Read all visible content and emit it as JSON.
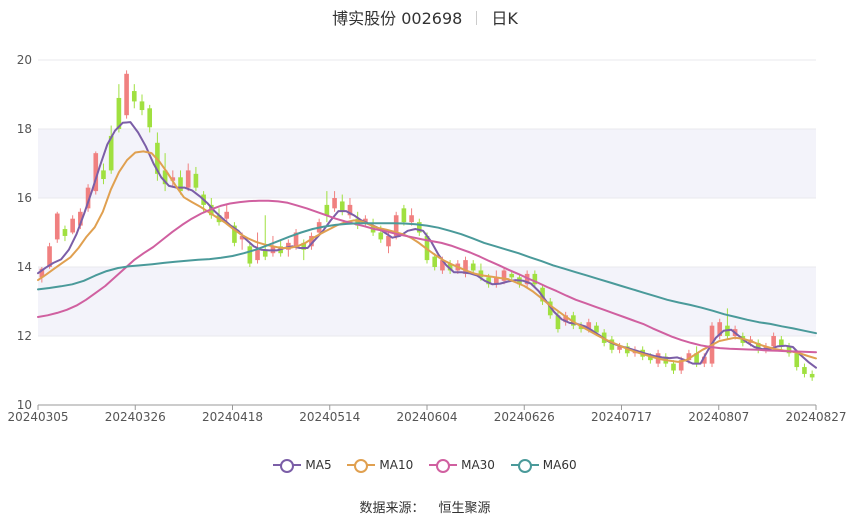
{
  "title": {
    "stock": "博实股份 002698",
    "period": "日K"
  },
  "source": {
    "label": "数据来源：",
    "name": "恒生聚源"
  },
  "colors": {
    "up": "#f08080",
    "down": "#a0e040",
    "ma5": "#7b5ea7",
    "ma10": "#e0a050",
    "ma30": "#d060a0",
    "ma60": "#4a9a9a",
    "band": "#f3f3fa",
    "grid": "#e8e8ee"
  },
  "chart_data": {
    "type": "candlestick",
    "ylim": [
      10,
      20
    ],
    "yticks": [
      10,
      12,
      14,
      16,
      18,
      20
    ],
    "xlabels": [
      "20240305",
      "20240326",
      "20240418",
      "20240514",
      "20240604",
      "20240626",
      "20240717",
      "20240807",
      "20240827"
    ],
    "series": [
      {
        "name": "MA5",
        "color": "#7b5ea7",
        "values": [
          13.82,
          13.98,
          14.12,
          14.22,
          14.5,
          14.95,
          15.55,
          16.2,
          16.9,
          17.55,
          17.95,
          18.18,
          18.2,
          17.9,
          17.5,
          17.0,
          16.6,
          16.35,
          16.3,
          16.3,
          16.22,
          16.05,
          15.85,
          15.6,
          15.4,
          15.2,
          15.05,
          14.8,
          14.6,
          14.5,
          14.48,
          14.48,
          14.55,
          14.6,
          14.55,
          14.55,
          14.8,
          15.05,
          15.35,
          15.62,
          15.62,
          15.5,
          15.35,
          15.25,
          15.15,
          15.0,
          14.85,
          14.9,
          15.05,
          15.1,
          15.05,
          14.75,
          14.35,
          14.05,
          13.85,
          13.85,
          13.82,
          13.75,
          13.6,
          13.5,
          13.52,
          13.58,
          13.62,
          13.6,
          13.52,
          13.3,
          13.0,
          12.7,
          12.48,
          12.38,
          12.35,
          12.28,
          12.15,
          12.0,
          11.85,
          11.75,
          11.68,
          11.62,
          11.55,
          11.48,
          11.42,
          11.38,
          11.36,
          11.38,
          11.3,
          11.2,
          11.2,
          11.6,
          11.95,
          12.15,
          12.18,
          12.0,
          11.82,
          11.68,
          11.62,
          11.62,
          11.7,
          11.72,
          11.68,
          11.45,
          11.25,
          11.08
        ]
      },
      {
        "name": "MA10",
        "color": "#e0a050",
        "values": [
          13.62,
          13.78,
          13.95,
          14.12,
          14.28,
          14.55,
          14.88,
          15.15,
          15.6,
          16.25,
          16.75,
          17.1,
          17.32,
          17.35,
          17.3,
          17.05,
          16.72,
          16.35,
          16.02,
          15.88,
          15.75,
          15.6,
          15.45,
          15.3,
          15.12,
          14.95,
          14.82,
          14.72,
          14.65,
          14.6,
          14.55,
          14.55,
          14.6,
          14.7,
          14.85,
          14.98,
          15.1,
          15.22,
          15.3,
          15.35,
          15.32,
          15.22,
          15.13,
          15.08,
          15.02,
          14.95,
          14.85,
          14.7,
          14.52,
          14.35,
          14.2,
          14.08,
          13.98,
          13.88,
          13.8,
          13.75,
          13.72,
          13.68,
          13.65,
          13.55,
          13.45,
          13.3,
          13.12,
          12.92,
          12.75,
          12.58,
          12.42,
          12.28,
          12.15,
          12.02,
          11.9,
          11.8,
          11.7,
          11.6,
          11.52,
          11.45,
          11.38,
          11.32,
          11.28,
          11.25,
          11.3,
          11.45,
          11.6,
          11.72,
          11.85,
          11.9,
          11.95,
          11.92,
          11.85,
          11.75,
          11.68,
          11.62,
          11.58,
          11.55,
          11.5,
          11.42,
          11.35
        ]
      },
      {
        "name": "MA30",
        "color": "#d060a0",
        "values": [
          12.55,
          12.6,
          12.67,
          12.76,
          12.88,
          13.05,
          13.25,
          13.45,
          13.7,
          13.95,
          14.2,
          14.4,
          14.58,
          14.8,
          15.02,
          15.22,
          15.4,
          15.55,
          15.67,
          15.77,
          15.84,
          15.88,
          15.91,
          15.92,
          15.92,
          15.9,
          15.86,
          15.78,
          15.7,
          15.6,
          15.5,
          15.4,
          15.32,
          15.25,
          15.18,
          15.1,
          15.05,
          14.98,
          14.92,
          14.86,
          14.8,
          14.75,
          14.7,
          14.62,
          14.52,
          14.42,
          14.3,
          14.17,
          14.05,
          13.92,
          13.8,
          13.67,
          13.55,
          13.42,
          13.3,
          13.17,
          13.05,
          12.95,
          12.85,
          12.75,
          12.65,
          12.55,
          12.45,
          12.35,
          12.22,
          12.1,
          11.98,
          11.88,
          11.8,
          11.73,
          11.68,
          11.65,
          11.63,
          11.62,
          11.61,
          11.6,
          11.58,
          11.57,
          11.56,
          11.55,
          11.54,
          11.53
        ]
      },
      {
        "name": "MA60",
        "color": "#4a9a9a",
        "values": [
          13.35,
          13.39,
          13.44,
          13.5,
          13.6,
          13.75,
          13.88,
          13.97,
          14.02,
          14.05,
          14.08,
          14.12,
          14.15,
          14.18,
          14.21,
          14.23,
          14.27,
          14.32,
          14.4,
          14.5,
          14.62,
          14.75,
          14.88,
          15.0,
          15.1,
          15.17,
          15.22,
          15.25,
          15.27,
          15.27,
          15.27,
          15.27,
          15.26,
          15.24,
          15.2,
          15.14,
          15.05,
          14.95,
          14.83,
          14.7,
          14.6,
          14.5,
          14.4,
          14.28,
          14.17,
          14.05,
          13.95,
          13.85,
          13.75,
          13.65,
          13.55,
          13.45,
          13.35,
          13.25,
          13.15,
          13.05,
          12.97,
          12.9,
          12.82,
          12.73,
          12.63,
          12.55,
          12.47,
          12.4,
          12.35,
          12.28,
          12.22,
          12.15,
          12.08
        ]
      },
      {
        "name": "candles",
        "values": [
          [
            13.7,
            13.95,
            13.55,
            14.0
          ],
          [
            14.0,
            14.6,
            13.95,
            14.7
          ],
          [
            14.8,
            15.55,
            14.7,
            15.6
          ],
          [
            15.1,
            14.9,
            14.75,
            15.2
          ],
          [
            15.0,
            15.4,
            14.95,
            15.5
          ],
          [
            15.2,
            15.6,
            15.1,
            15.7
          ],
          [
            15.7,
            16.3,
            15.6,
            16.4
          ],
          [
            16.2,
            17.3,
            16.1,
            17.35
          ],
          [
            16.8,
            16.55,
            16.4,
            17.0
          ],
          [
            17.8,
            16.8,
            16.7,
            18.1
          ],
          [
            18.9,
            18.0,
            17.9,
            19.3
          ],
          [
            18.4,
            19.6,
            18.3,
            19.7
          ],
          [
            19.1,
            18.8,
            18.6,
            19.3
          ],
          [
            18.8,
            18.55,
            18.4,
            19.0
          ],
          [
            18.6,
            18.05,
            17.9,
            18.7
          ],
          [
            17.6,
            16.7,
            16.5,
            17.9
          ],
          [
            16.8,
            16.4,
            16.2,
            17.3
          ],
          [
            16.5,
            16.6,
            16.3,
            16.8
          ],
          [
            16.6,
            16.2,
            16.1,
            16.8
          ],
          [
            16.3,
            16.8,
            16.2,
            17.0
          ],
          [
            16.7,
            16.3,
            16.2,
            16.9
          ],
          [
            16.1,
            15.8,
            15.6,
            16.2
          ],
          [
            15.8,
            15.5,
            15.4,
            16.0
          ],
          [
            15.5,
            15.3,
            15.2,
            15.7
          ],
          [
            15.4,
            15.6,
            15.3,
            15.8
          ],
          [
            15.2,
            14.7,
            14.6,
            15.3
          ],
          [
            14.8,
            14.9,
            14.5,
            15.0
          ],
          [
            14.6,
            14.1,
            14.0,
            14.7
          ],
          [
            14.2,
            14.5,
            14.1,
            15.0
          ],
          [
            14.5,
            14.3,
            14.2,
            15.5
          ],
          [
            14.4,
            14.6,
            14.3,
            14.9
          ],
          [
            14.6,
            14.4,
            14.3,
            14.8
          ],
          [
            14.5,
            14.7,
            14.3,
            14.8
          ],
          [
            14.6,
            15.0,
            14.5,
            15.1
          ],
          [
            14.7,
            14.5,
            14.2,
            14.8
          ],
          [
            14.6,
            14.9,
            14.5,
            15.0
          ],
          [
            15.0,
            15.3,
            14.9,
            15.4
          ],
          [
            15.8,
            15.5,
            15.3,
            16.2
          ],
          [
            15.7,
            16.0,
            15.6,
            16.2
          ],
          [
            15.9,
            15.6,
            15.5,
            16.1
          ],
          [
            15.5,
            15.8,
            15.4,
            16.0
          ],
          [
            15.4,
            15.2,
            15.1,
            15.6
          ],
          [
            15.3,
            15.4,
            15.2,
            15.5
          ],
          [
            15.2,
            15.0,
            14.9,
            15.4
          ],
          [
            15.0,
            14.8,
            14.7,
            15.2
          ],
          [
            14.6,
            14.9,
            14.4,
            15.0
          ],
          [
            14.9,
            15.5,
            14.8,
            15.6
          ],
          [
            15.7,
            15.3,
            15.2,
            15.8
          ],
          [
            15.3,
            15.5,
            15.2,
            15.7
          ],
          [
            15.3,
            15.0,
            14.9,
            15.4
          ],
          [
            14.9,
            14.2,
            14.1,
            15.0
          ],
          [
            14.3,
            14.0,
            13.9,
            14.4
          ],
          [
            13.9,
            14.2,
            13.8,
            14.3
          ],
          [
            14.1,
            13.9,
            13.8,
            14.2
          ],
          [
            13.9,
            14.1,
            13.8,
            14.2
          ],
          [
            13.8,
            14.2,
            13.7,
            14.3
          ],
          [
            14.1,
            13.9,
            13.8,
            14.2
          ],
          [
            13.9,
            13.7,
            13.6,
            14.1
          ],
          [
            13.7,
            13.5,
            13.4,
            13.8
          ],
          [
            13.5,
            13.7,
            13.4,
            13.9
          ],
          [
            13.6,
            13.9,
            13.5,
            14.0
          ],
          [
            13.8,
            13.7,
            13.6,
            13.9
          ],
          [
            13.7,
            13.5,
            13.4,
            13.8
          ],
          [
            13.5,
            13.8,
            13.4,
            13.9
          ],
          [
            13.8,
            13.5,
            13.4,
            13.9
          ],
          [
            13.4,
            13.0,
            12.9,
            13.5
          ],
          [
            13.0,
            12.6,
            12.5,
            13.1
          ],
          [
            12.6,
            12.2,
            12.1,
            12.7
          ],
          [
            12.4,
            12.6,
            12.3,
            12.7
          ],
          [
            12.6,
            12.3,
            12.2,
            12.7
          ],
          [
            12.3,
            12.2,
            12.1,
            12.4
          ],
          [
            12.2,
            12.4,
            12.1,
            12.5
          ],
          [
            12.3,
            12.1,
            12.0,
            12.4
          ],
          [
            12.1,
            11.8,
            11.7,
            12.2
          ],
          [
            11.9,
            11.6,
            11.5,
            12.0
          ],
          [
            11.6,
            11.7,
            11.5,
            11.8
          ],
          [
            11.7,
            11.5,
            11.4,
            11.8
          ],
          [
            11.5,
            11.6,
            11.4,
            11.7
          ],
          [
            11.6,
            11.4,
            11.3,
            11.7
          ],
          [
            11.4,
            11.3,
            11.2,
            11.5
          ],
          [
            11.2,
            11.5,
            11.1,
            11.6
          ],
          [
            11.4,
            11.2,
            11.1,
            11.5
          ],
          [
            11.2,
            11.0,
            10.9,
            11.3
          ],
          [
            11.0,
            11.3,
            10.9,
            11.4
          ],
          [
            11.3,
            11.5,
            11.2,
            11.6
          ],
          [
            11.5,
            11.2,
            11.1,
            11.7
          ],
          [
            11.2,
            11.4,
            11.1,
            11.5
          ],
          [
            11.2,
            12.3,
            11.1,
            12.4
          ],
          [
            12.0,
            12.4,
            11.9,
            12.5
          ],
          [
            12.3,
            12.0,
            11.9,
            12.8
          ],
          [
            12.0,
            12.2,
            11.9,
            12.3
          ],
          [
            12.0,
            11.8,
            11.7,
            12.1
          ],
          [
            11.8,
            11.9,
            11.7,
            12.0
          ],
          [
            11.8,
            11.6,
            11.5,
            11.9
          ],
          [
            11.6,
            11.7,
            11.5,
            11.8
          ],
          [
            11.7,
            12.0,
            11.6,
            12.1
          ],
          [
            11.9,
            11.7,
            11.6,
            12.0
          ],
          [
            11.7,
            11.5,
            11.4,
            11.8
          ],
          [
            11.5,
            11.1,
            11.0,
            11.6
          ],
          [
            11.1,
            10.9,
            10.8,
            11.2
          ],
          [
            10.9,
            10.8,
            10.7,
            11.0
          ]
        ]
      }
    ]
  }
}
